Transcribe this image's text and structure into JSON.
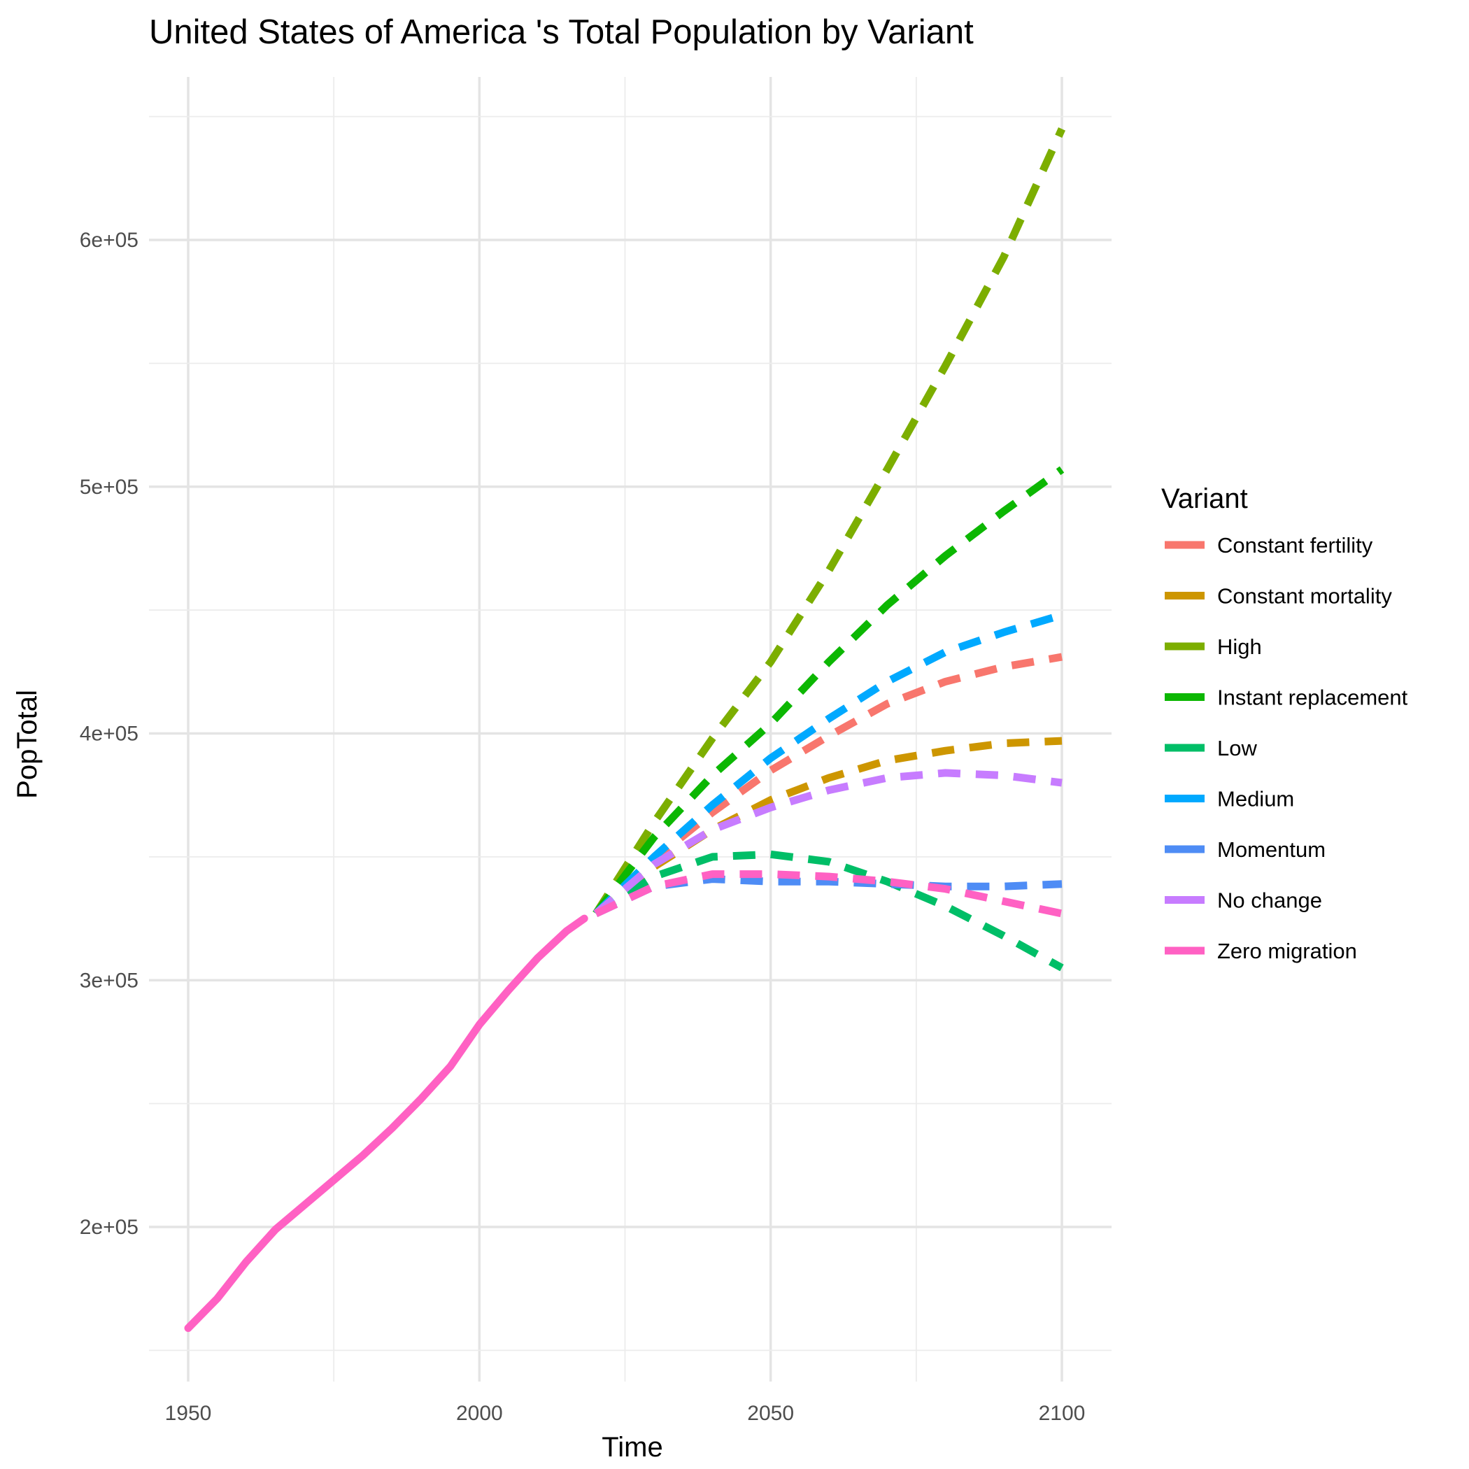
{
  "chart_data": {
    "type": "line",
    "title": "United States of America 's Total Population by Variant",
    "xlabel": "Time",
    "ylabel": "PopTotal",
    "xlim": [
      1950,
      2100
    ],
    "ylim": [
      150000,
      650000
    ],
    "x_ticks": [
      1950,
      2000,
      2050,
      2100
    ],
    "x_tick_labels": [
      "1950",
      "2000",
      "2050",
      "2100"
    ],
    "y_ticks": [
      200000,
      300000,
      400000,
      500000,
      600000
    ],
    "y_tick_labels": [
      "2e+05",
      "3e+05",
      "4e+05",
      "5e+05",
      "6e+05"
    ],
    "grid": true,
    "legend": {
      "title": "Variant",
      "placement": "right"
    },
    "series": [
      {
        "name": "Constant fertility",
        "color": "#F8766D",
        "dash": true,
        "x": [
          2020,
          2030,
          2040,
          2050,
          2060,
          2070,
          2080,
          2090,
          2100
        ],
        "values": [
          327000,
          349000,
          368000,
          385000,
          399000,
          412000,
          421000,
          427000,
          431000
        ]
      },
      {
        "name": "Constant mortality",
        "color": "#CD9600",
        "dash": true,
        "x": [
          2020,
          2030,
          2040,
          2050,
          2060,
          2070,
          2080,
          2090,
          2100
        ],
        "values": [
          327000,
          346000,
          361000,
          373000,
          382000,
          389000,
          393000,
          396000,
          397000
        ]
      },
      {
        "name": "High",
        "color": "#7CAE00",
        "dash": true,
        "x": [
          2020,
          2030,
          2040,
          2050,
          2060,
          2070,
          2080,
          2090,
          2100
        ],
        "values": [
          327000,
          364000,
          398000,
          429000,
          466000,
          507000,
          549000,
          593000,
          645000
        ]
      },
      {
        "name": "Instant replacement",
        "color": "#0CB702",
        "dash": true,
        "x": [
          2020,
          2030,
          2040,
          2050,
          2060,
          2070,
          2080,
          2090,
          2100
        ],
        "values": [
          327000,
          358000,
          383000,
          404000,
          429000,
          452000,
          472000,
          490000,
          507000
        ]
      },
      {
        "name": "Low",
        "color": "#00BE67",
        "dash": true,
        "x": [
          2020,
          2030,
          2040,
          2050,
          2060,
          2070,
          2080,
          2090,
          2100
        ],
        "values": [
          327000,
          342000,
          350000,
          351000,
          348000,
          340000,
          330000,
          318000,
          305000
        ]
      },
      {
        "name": "Medium",
        "color": "#00A9FF",
        "dash": true,
        "x": [
          2020,
          2030,
          2040,
          2050,
          2060,
          2070,
          2080,
          2090,
          2100
        ],
        "values": [
          327000,
          350000,
          371000,
          390000,
          406000,
          421000,
          433000,
          441000,
          448000
        ]
      },
      {
        "name": "Momentum",
        "color": "#4E8CF5",
        "dash": true,
        "x": [
          2020,
          2030,
          2040,
          2050,
          2060,
          2070,
          2080,
          2090,
          2100
        ],
        "values": [
          327000,
          338000,
          341000,
          340000,
          340000,
          339000,
          338000,
          338000,
          339000
        ]
      },
      {
        "name": "No change",
        "color": "#C77CFF",
        "dash": true,
        "x": [
          2020,
          2030,
          2040,
          2050,
          2060,
          2070,
          2080,
          2090,
          2100
        ],
        "values": [
          327000,
          347000,
          361000,
          370000,
          377000,
          382000,
          384000,
          383000,
          380000
        ]
      },
      {
        "name": "Zero migration",
        "color": "#FF61C3",
        "dash": true,
        "x": [
          2020,
          2030,
          2040,
          2050,
          2060,
          2070,
          2080,
          2090,
          2100
        ],
        "values": [
          327000,
          338000,
          343000,
          343000,
          342000,
          340000,
          337000,
          332000,
          327000
        ]
      },
      {
        "name": "Zero migration",
        "color": "#FF61C3",
        "dash": false,
        "legend": false,
        "x": [
          1950,
          1955,
          1960,
          1965,
          1970,
          1975,
          1980,
          1985,
          1990,
          1995,
          2000,
          2005,
          2010,
          2015,
          2018
        ],
        "values": [
          159000,
          171000,
          186000,
          199000,
          209000,
          219000,
          229000,
          240000,
          252000,
          265000,
          282000,
          296000,
          309000,
          320000,
          325000
        ]
      }
    ]
  }
}
